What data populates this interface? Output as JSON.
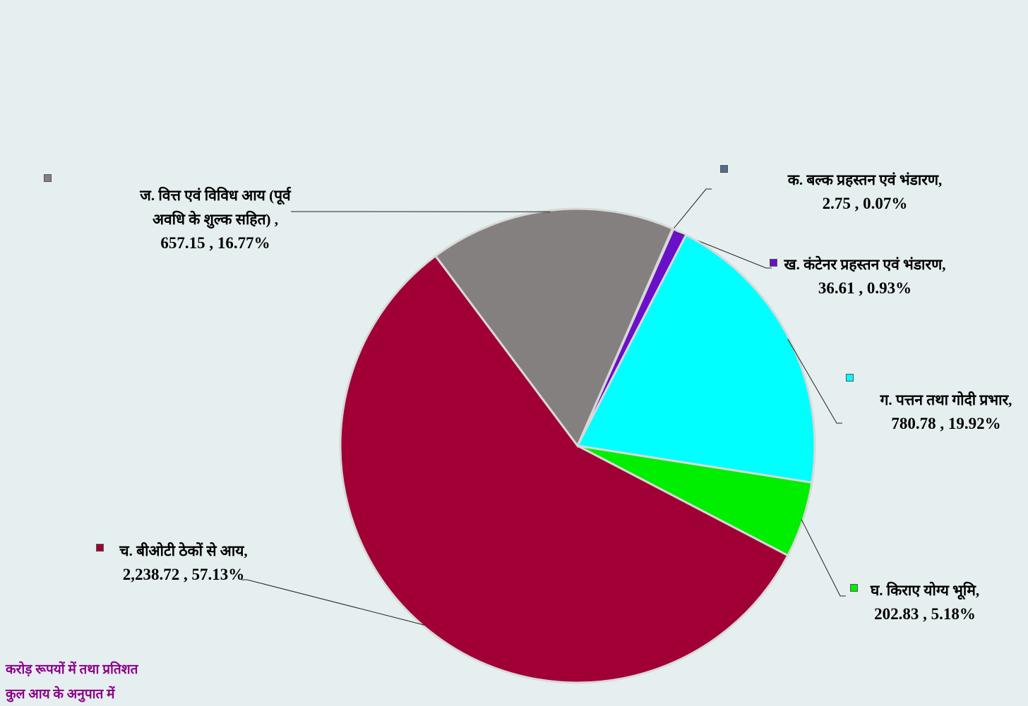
{
  "chart_data": {
    "type": "pie",
    "categories": [
      "क. बल्क प्रहस्तन एवं भंडारण,",
      "ख. कंटेनर प्रहस्तन एवं भंडारण,",
      "ग. पत्तन तथा गोदी प्रभार,",
      "घ. किराए योग्य भूमि,",
      "च. बीओटी ठेकों से आय,",
      "ज. वित्त एवं विविध आय (पूर्व अवधि के शुल्क सहित) ,"
    ],
    "values": [
      2.75,
      36.61,
      780.78,
      202.83,
      2238.72,
      657.15
    ],
    "percents": [
      0.07,
      0.93,
      19.92,
      5.18,
      57.13,
      16.77
    ],
    "value_labels": [
      "2.75 , 0.07%",
      "36.61 , 0.93%",
      "780.78 , 19.92%",
      "202.83 , 5.18%",
      "2,238.72 , 57.13%",
      "657.15 , 16.77%"
    ],
    "colors": [
      "#4f6d8f",
      "#6a10c8",
      "#00ffff",
      "#00ee00",
      "#a00036",
      "#858080"
    ],
    "notes": [
      "करोड़ रूपयों में तथा प्रतिशत",
      "कुल आय के अनुपात में"
    ]
  }
}
